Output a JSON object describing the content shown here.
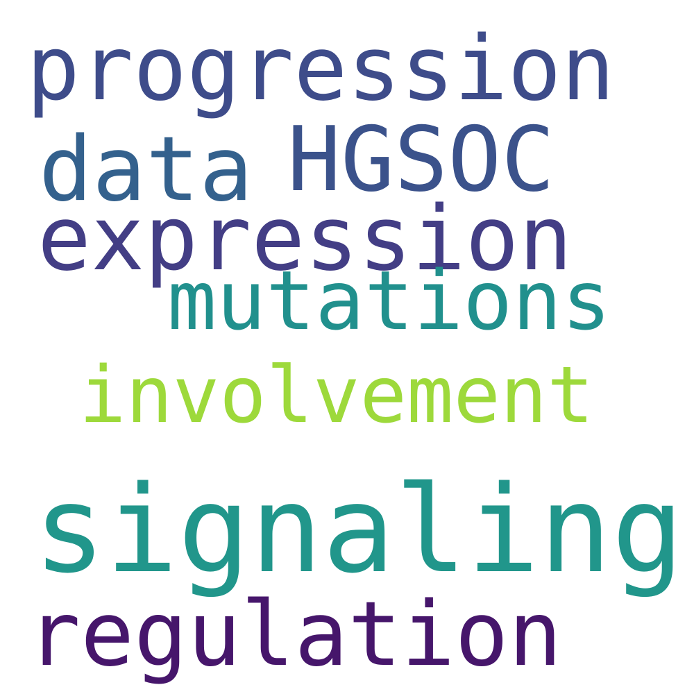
{
  "words": [
    {
      "id": "progression",
      "text": "progression",
      "color": "#3e4c8a"
    },
    {
      "id": "data",
      "text": "data",
      "color": "#34618d"
    },
    {
      "id": "hgsoc",
      "text": "HGSOC",
      "color": "#3b528b"
    },
    {
      "id": "expression",
      "text": "expression",
      "color": "#433e85"
    },
    {
      "id": "mutations",
      "text": "mutations",
      "color": "#21908d"
    },
    {
      "id": "involvement",
      "text": "involvement",
      "color": "#9dd93b"
    },
    {
      "id": "signaling",
      "text": "signaling",
      "color": "#21968b"
    },
    {
      "id": "regulation",
      "text": "regulation",
      "color": "#46166b"
    }
  ]
}
